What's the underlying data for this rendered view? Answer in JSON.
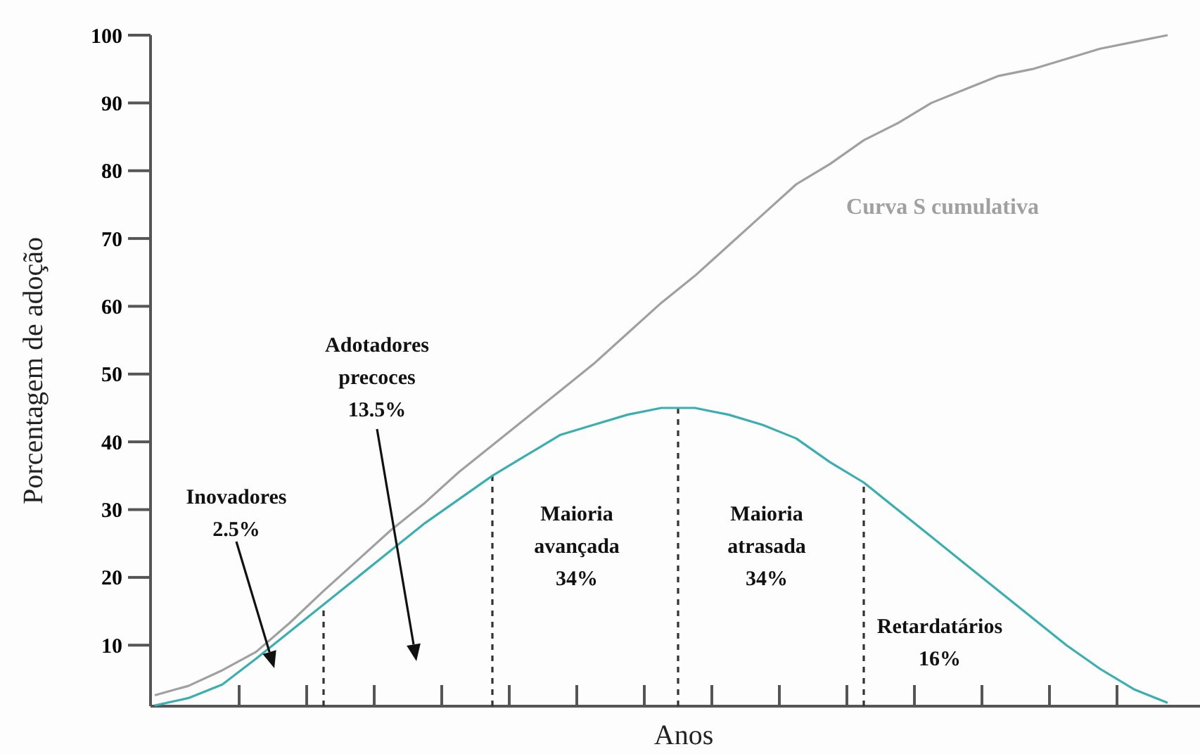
{
  "chart_data": {
    "type": "line",
    "xlabel": "Anos",
    "ylabel": "Porcentagem de adoção",
    "ylim": [
      1,
      100
    ],
    "categories": [
      null,
      null,
      null,
      null,
      null,
      null,
      null,
      null,
      null,
      null,
      null,
      null,
      null,
      null,
      null,
      null,
      null,
      null,
      null,
      null,
      null,
      null,
      null,
      null,
      null,
      null,
      null,
      null,
      null,
      null,
      null
    ],
    "yticks": [
      10,
      20,
      30,
      40,
      50,
      60,
      70,
      80,
      90,
      100
    ],
    "series": [
      {
        "name": "Curva S cumulativa",
        "color": "#a0a0a0",
        "values": [
          2.6,
          4,
          6.3,
          9,
          13.3,
          18,
          22.5,
          27,
          31,
          35.5,
          39.5,
          43.5,
          47.5,
          51.5,
          56,
          60.5,
          64.5,
          69,
          73.5,
          78,
          81,
          84.5,
          87,
          90,
          92,
          94,
          95,
          96.5,
          98,
          99,
          100
        ]
      },
      {
        "color": "#3aaeb0",
        "values": [
          1.1,
          2.2,
          4.2,
          8,
          12,
          16,
          20,
          24,
          28,
          31.5,
          35,
          38,
          41,
          42.5,
          44,
          45,
          45,
          44,
          42.5,
          40.5,
          37,
          34,
          30,
          26,
          22,
          18,
          14,
          10,
          6.5,
          3.5,
          1.5
        ]
      }
    ],
    "annotations": [
      "Inovadores\n2.5%",
      "Adotadores\nprecoces\n13.5%",
      "Maioria\navançada\n34%",
      "Maioria\natrasada\n34%",
      "Retardatários\n16%"
    ]
  }
}
